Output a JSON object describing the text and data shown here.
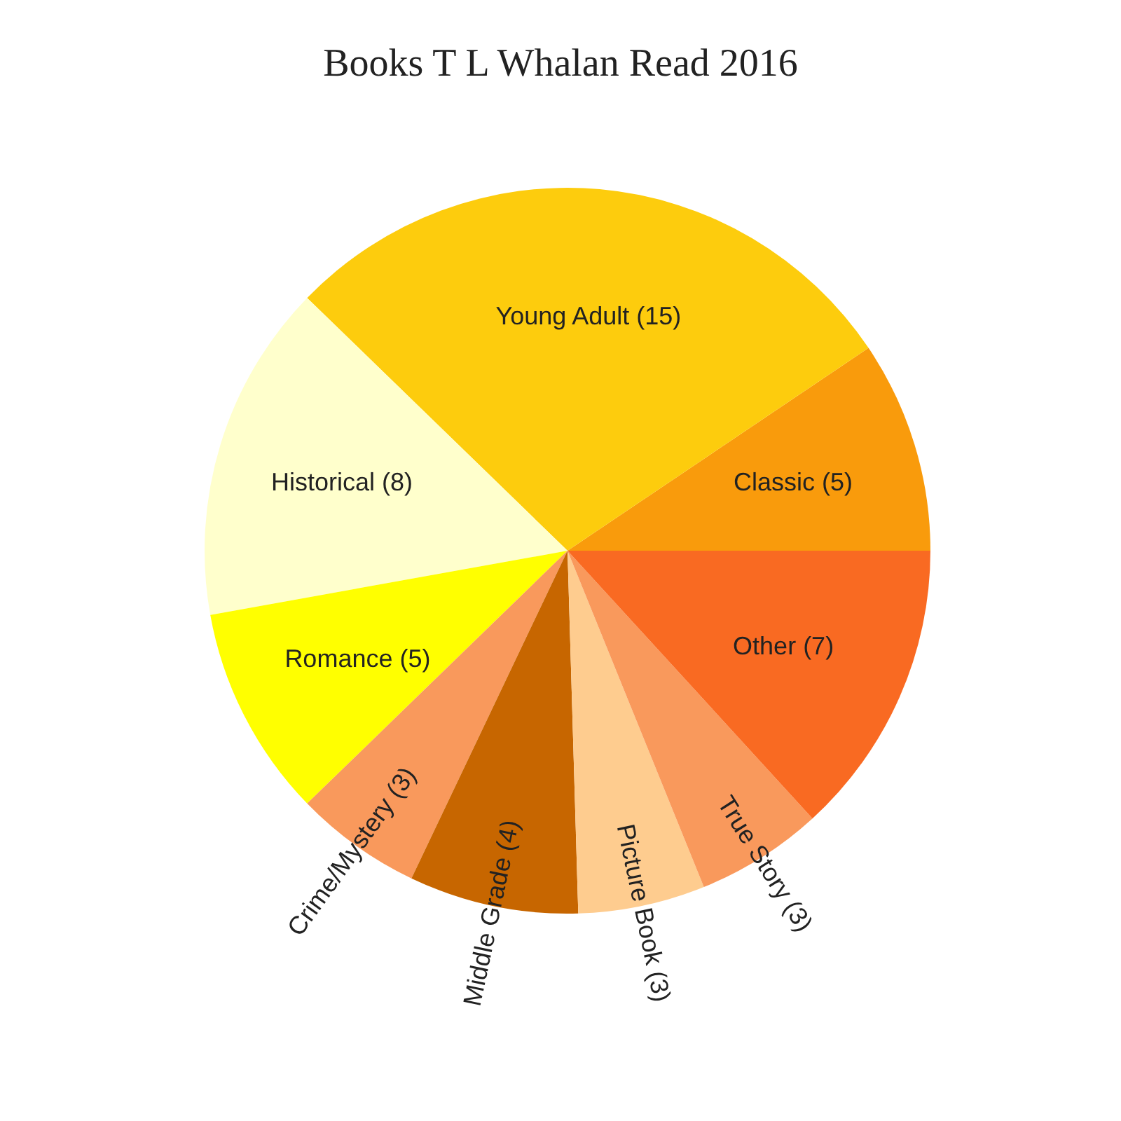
{
  "chart_data": {
    "type": "pie",
    "title": "Books T L Whalan Read 2016",
    "categories": [
      "Classic (5)",
      "Young Adult (15)",
      "Historical (8)",
      "Romance (5)",
      "Crime/Mystery (3)",
      "Middle Grade (4)",
      "Picture Book (3)",
      "True Story (3)",
      "Other (7)"
    ],
    "values": [
      5,
      15,
      8,
      5,
      3,
      4,
      3,
      3,
      7
    ],
    "colors": [
      "#f99b0c",
      "#fdcc0d",
      "#ffffcc",
      "#ffff00",
      "#f9995c",
      "#c76600",
      "#fecc8f",
      "#f9995c",
      "#f96a22"
    ]
  }
}
